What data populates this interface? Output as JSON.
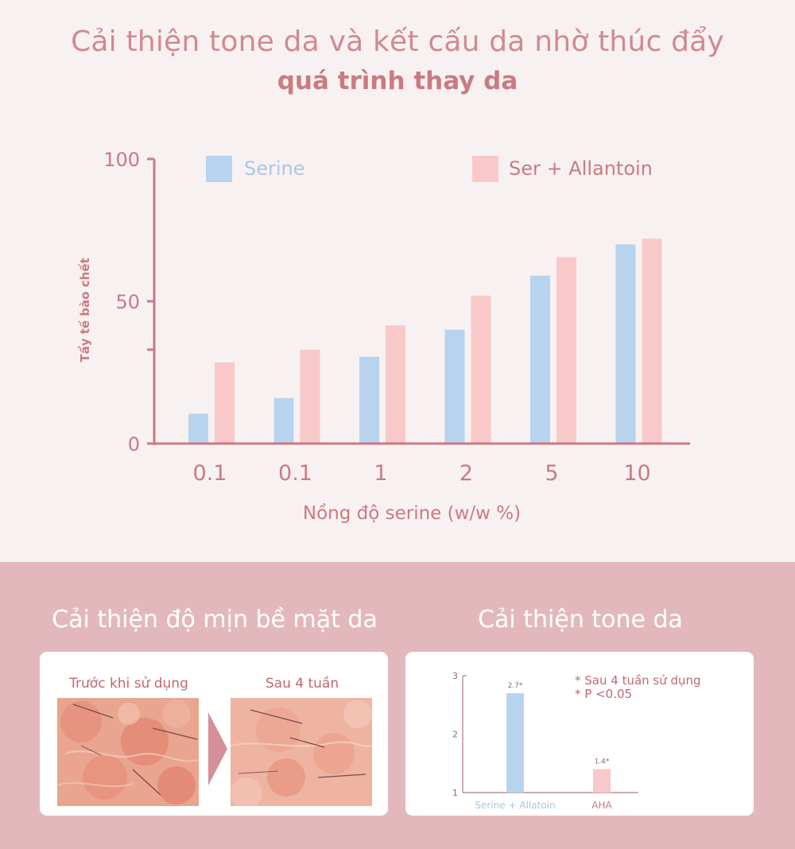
{
  "header": {
    "title_line1": "Cải thiện tone da và kết cấu da nhờ thúc đẩy",
    "title_line2": "quá trình thay da"
  },
  "chart_data": [
    {
      "type": "bar",
      "xlabel": "Nồng độ serine (w/w %)",
      "ylabel": "Tẩy tế bào chết",
      "categories": [
        "0.1",
        "0.1",
        "1",
        "2",
        "5",
        "10"
      ],
      "yticks": [
        "0",
        "50",
        "100"
      ],
      "ylim": [
        0,
        100
      ],
      "grid": false,
      "legend_position": "top",
      "series": [
        {
          "name": "Serine",
          "color": "#b8d3ee",
          "values": [
            10.5,
            16,
            30.5,
            40,
            59,
            70
          ]
        },
        {
          "name": "Ser + Allantoin",
          "color": "#f9c8c8",
          "values": [
            28.5,
            33,
            41.5,
            52,
            65.5,
            72
          ]
        }
      ]
    },
    {
      "type": "bar",
      "categories": [
        "Serine + Allatoin",
        "AHA"
      ],
      "values": [
        2.7,
        1.4
      ],
      "bar_labels": [
        "2.7*",
        "1.4*"
      ],
      "colors": [
        "#b8d3ee",
        "#f9c8c8"
      ],
      "yticks": [
        "1",
        "2",
        "3"
      ],
      "ylim": [
        1,
        3
      ],
      "notes": [
        "* Sau 4 tuần sử dụng",
        "* P <0.05"
      ]
    }
  ],
  "smoothness": {
    "title": "Cải thiện độ mịn bề mặt da",
    "before_label": "Trước khi sử dụng",
    "after_label": "Sau 4 tuần"
  },
  "tone": {
    "title": "Cải thiện tone da"
  },
  "colors": {
    "background_top": "#f8f1f1",
    "background_bottom": "#e3b8bd",
    "accent": "#c97b82",
    "serine": "#b8d3ee",
    "allantoin": "#f9c8c8"
  }
}
